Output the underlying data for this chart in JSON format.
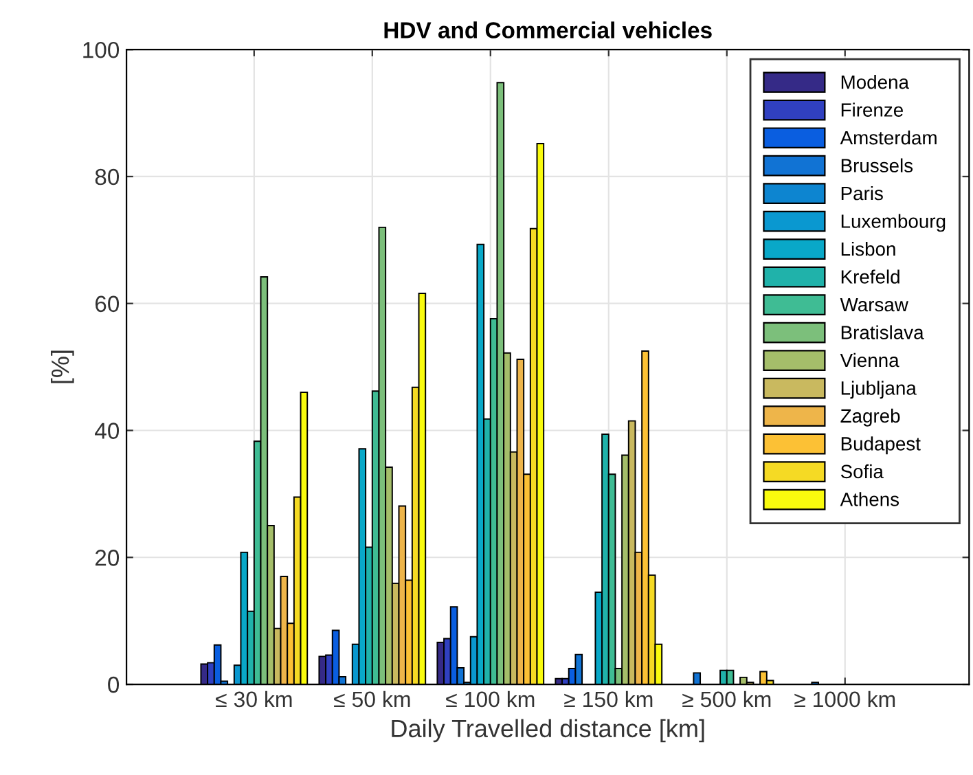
{
  "chart_data": {
    "type": "bar",
    "title": "HDV and Commercial vehicles",
    "xlabel": "Daily Travelled distance [km]",
    "ylabel": "[%]",
    "categories": [
      "≤ 30 km",
      "≤ 50 km",
      "≤ 100 km",
      "≥ 150 km",
      "≥ 500 km",
      "≥ 1000 km"
    ],
    "series": [
      {
        "name": "Modena",
        "color": "#352a87",
        "values": [
          3.2,
          4.4,
          6.6,
          0.9,
          null,
          null
        ]
      },
      {
        "name": "Firenze",
        "color": "#3040c0",
        "values": [
          3.4,
          4.6,
          7.2,
          0.9,
          null,
          null
        ]
      },
      {
        "name": "Amsterdam",
        "color": "#0a5ee0",
        "values": [
          6.2,
          8.5,
          12.2,
          2.5,
          null,
          null
        ]
      },
      {
        "name": "Brussels",
        "color": "#1173d4",
        "values": [
          0.5,
          1.2,
          2.6,
          4.7,
          1.8,
          0.3
        ]
      },
      {
        "name": "Paris",
        "color": "#0d85d0",
        "values": [
          null,
          null,
          0.3,
          null,
          null,
          null
        ]
      },
      {
        "name": "Luxembourg",
        "color": "#0a98d0",
        "values": [
          3,
          6.3,
          7.5,
          null,
          null,
          null
        ]
      },
      {
        "name": "Lisbon",
        "color": "#09a8c8",
        "values": [
          20.8,
          37.1,
          69.3,
          14.5,
          null,
          null
        ]
      },
      {
        "name": "Krefeld",
        "color": "#20b2aa",
        "values": [
          11.5,
          21.6,
          41.8,
          39.4,
          2.2,
          null
        ]
      },
      {
        "name": "Warsaw",
        "color": "#3fbc94",
        "values": [
          38.3,
          46.2,
          57.6,
          33.1,
          2.2,
          null
        ]
      },
      {
        "name": "Bratislava",
        "color": "#7cbf7b",
        "values": [
          64.2,
          72,
          94.8,
          2.5,
          null,
          null
        ]
      },
      {
        "name": "Vienna",
        "color": "#a5be6a",
        "values": [
          25,
          34.2,
          52.2,
          36.1,
          1.1,
          null
        ]
      },
      {
        "name": "Ljubljana",
        "color": "#c9b95f",
        "values": [
          8.8,
          15.9,
          36.6,
          41.5,
          0.3,
          null
        ]
      },
      {
        "name": "Zagreb",
        "color": "#eeb54a",
        "values": [
          17,
          28.1,
          51.2,
          20.8,
          null,
          null
        ]
      },
      {
        "name": "Budapest",
        "color": "#fcc135",
        "values": [
          9.6,
          16.4,
          33.1,
          52.5,
          2,
          null
        ]
      },
      {
        "name": "Sofia",
        "color": "#f5da24",
        "values": [
          29.5,
          46.8,
          71.8,
          17.2,
          0.6,
          null
        ]
      },
      {
        "name": "Athens",
        "color": "#f9fb0e",
        "values": [
          46,
          61.6,
          85.2,
          6.3,
          null,
          null
        ]
      }
    ],
    "ylim": [
      0,
      100
    ],
    "yticks": [
      0,
      20,
      40,
      60,
      80,
      100
    ],
    "grid": true,
    "legend": "top right"
  }
}
